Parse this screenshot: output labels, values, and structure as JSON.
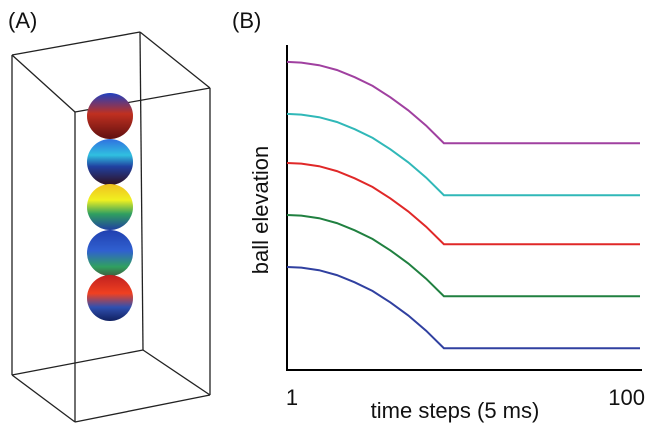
{
  "panel_labels": [
    "(A)",
    "(B)"
  ],
  "chart_data": {
    "type": "line",
    "x_label": "time steps (5 ms)",
    "y_label": "ball elevation",
    "x": [
      1,
      5,
      10,
      15,
      20,
      25,
      30,
      35,
      40,
      45,
      100
    ],
    "xlim": [
      1,
      100
    ],
    "xticks": [
      1,
      100
    ],
    "ylim": [
      0,
      100
    ],
    "grid": false,
    "series": [
      {
        "color": "#a040a0",
        "values": [
          94.8,
          94.6,
          93.8,
          92.3,
          90.1,
          87.4,
          83.9,
          79.9,
          75.2,
          69.8,
          69.8
        ]
      },
      {
        "color": "#30b8b8",
        "values": [
          78.8,
          78.6,
          77.8,
          76.3,
          74.1,
          71.4,
          67.9,
          63.9,
          59.2,
          53.8,
          53.8
        ]
      },
      {
        "color": "#e02828",
        "values": [
          63.7,
          63.5,
          62.7,
          61.2,
          59.0,
          56.3,
          52.8,
          48.8,
          44.1,
          38.7,
          38.7
        ]
      },
      {
        "color": "#208040",
        "values": [
          47.7,
          47.5,
          46.7,
          45.2,
          43.0,
          40.3,
          36.8,
          32.8,
          28.1,
          22.7,
          22.7
        ]
      },
      {
        "color": "#3040a0",
        "values": [
          31.7,
          31.5,
          30.7,
          29.2,
          27.0,
          24.3,
          20.8,
          16.8,
          12.1,
          6.7,
          6.7
        ]
      }
    ]
  }
}
